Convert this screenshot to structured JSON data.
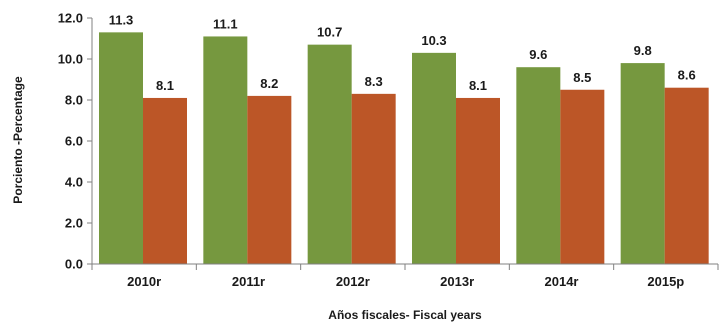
{
  "chart_data": {
    "type": "bar",
    "categories": [
      "2010r",
      "2011r",
      "2012r",
      "2013r",
      "2014r",
      "2015p"
    ],
    "series": [
      {
        "color": "#76983f",
        "values": [
          11.3,
          11.1,
          10.7,
          10.3,
          9.6,
          9.8
        ]
      },
      {
        "color": "#bc5627",
        "values": [
          8.1,
          8.2,
          8.3,
          8.1,
          8.5,
          8.6
        ]
      }
    ],
    "data_labels": [
      [
        "11.3",
        "11.1",
        "10.7",
        "10.3",
        "9.6",
        "9.8"
      ],
      [
        "8.1",
        "8.2",
        "8.3",
        "8.1",
        "8.5",
        "8.6"
      ]
    ],
    "y_ticks": [
      "0.0",
      "2.0",
      "4.0",
      "6.0",
      "8.0",
      "10.0",
      "12.0"
    ],
    "ylim": [
      0,
      12
    ],
    "xlabel": "Años fiscales- Fiscal years",
    "ylabel": "Porciento -Percentage",
    "title": "",
    "grid": false,
    "legend": "none"
  }
}
